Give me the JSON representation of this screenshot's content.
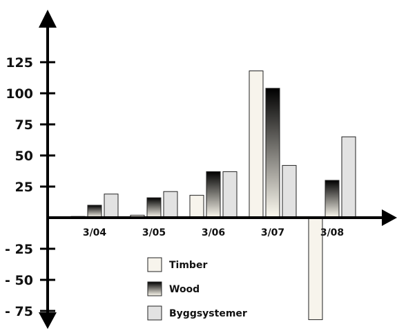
{
  "chart_data": {
    "type": "bar",
    "title": "",
    "xlabel": "",
    "ylabel": "",
    "categories": [
      "3/04",
      "3/05",
      "3/06",
      "3/07",
      "3/08"
    ],
    "series": [
      {
        "name": "Timber",
        "values": [
          1,
          2,
          18,
          118,
          -82
        ]
      },
      {
        "name": "Wood",
        "values": [
          10,
          16,
          37,
          104,
          30
        ]
      },
      {
        "name": "Byggsystemer",
        "values": [
          19,
          21,
          37,
          42,
          65
        ]
      }
    ],
    "y_ticks": [
      125,
      100,
      75,
      50,
      25,
      -25,
      -50,
      -75
    ],
    "y_tick_labels": [
      "125",
      "100",
      "75",
      "50",
      "25",
      "- 25",
      "- 50",
      "- 75"
    ],
    "ylim": [
      -82,
      155
    ],
    "grid": false,
    "legend_position": "bottom-center",
    "colors": {
      "timber": "#f7f4ec",
      "wood_top": "#000000",
      "wood_bottom": "#fdfaf0",
      "byggsystemer": "#e2e2e2",
      "axis": "#000000",
      "bar_stroke": "#222222"
    }
  }
}
